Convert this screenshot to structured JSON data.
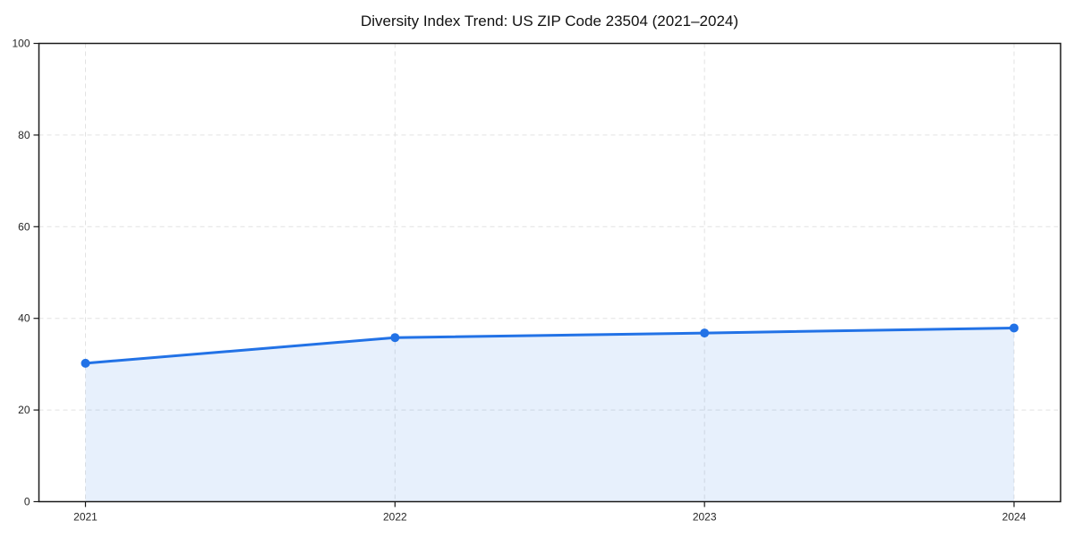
{
  "chart_data": {
    "type": "area",
    "title": "Diversity Index Trend: US ZIP Code 23504 (2021–2024)",
    "x": [
      "2021",
      "2022",
      "2023",
      "2024"
    ],
    "series": [
      {
        "name": "Diversity Index",
        "values": [
          30.2,
          35.8,
          36.8,
          37.9
        ]
      }
    ],
    "xlabel": "",
    "ylabel": "",
    "ylim": [
      0,
      100
    ],
    "yticks": [
      0,
      20,
      40,
      60,
      80,
      100
    ],
    "ytick_labels": [
      "0",
      "20",
      "40",
      "60",
      "80",
      "100"
    ],
    "grid": true,
    "grid_style": "dashed",
    "legend_position": "none",
    "colors": {
      "line": "#2272e6",
      "marker": "#2272e6",
      "fill": "rgba(34, 114, 230, 0.11)",
      "grid": "#e2e2e2",
      "axis": "#1a1a1a",
      "tick_label": "#262626",
      "title": "#111111"
    }
  }
}
